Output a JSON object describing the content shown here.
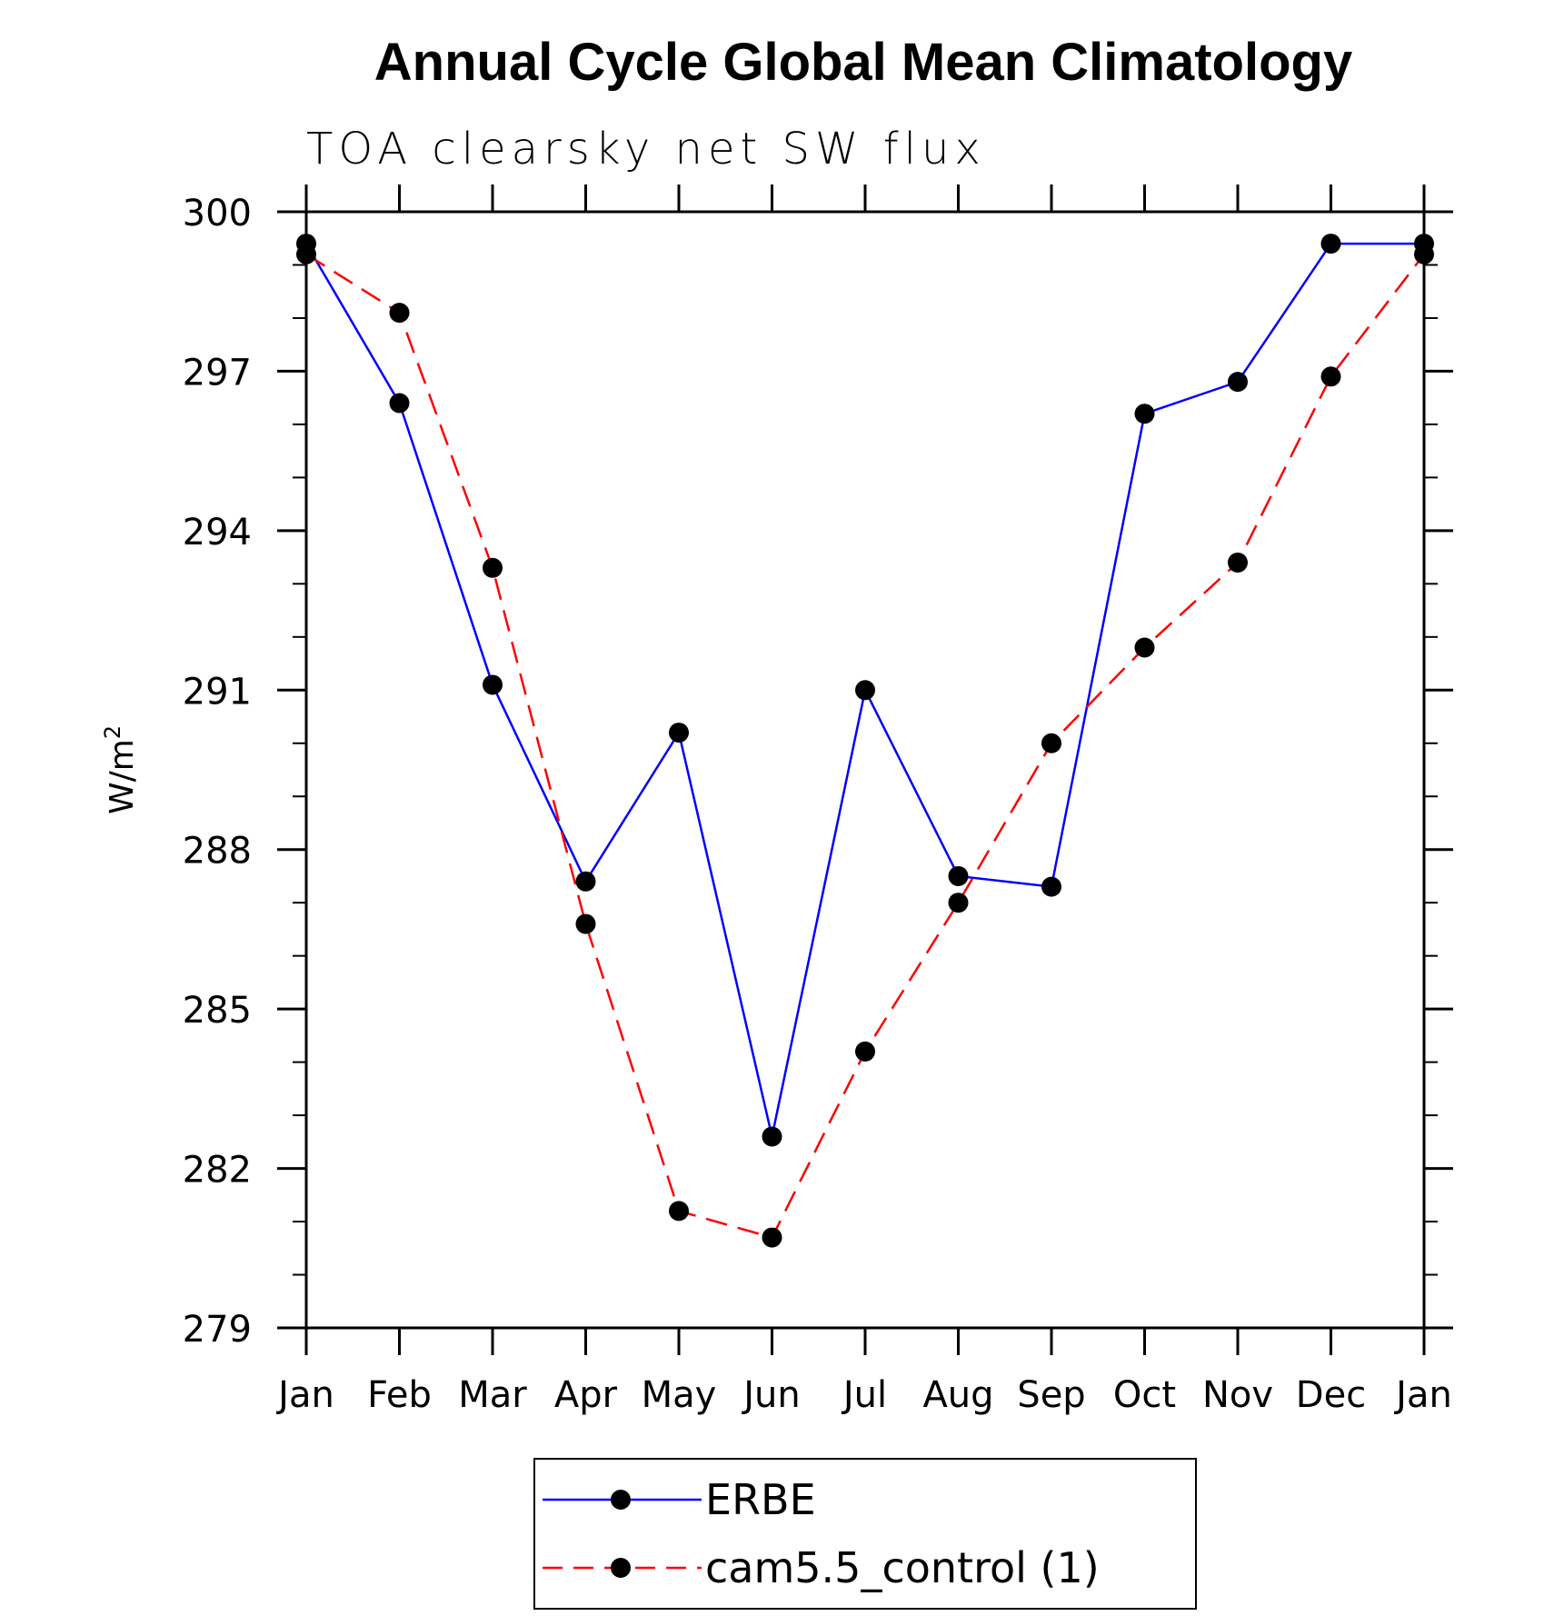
{
  "chart_data": {
    "type": "line",
    "title": "Annual Cycle Global Mean Climatology",
    "subtitle": "TOA clearsky net SW flux",
    "ylabel": "W/m",
    "ylabel_superscript": "2",
    "xlabel": "",
    "categories": [
      "Jan",
      "Feb",
      "Mar",
      "Apr",
      "May",
      "Jun",
      "Jul",
      "Aug",
      "Sep",
      "Oct",
      "Nov",
      "Dec",
      "Jan"
    ],
    "ylim": [
      279,
      300
    ],
    "yticks": [
      "279",
      "282",
      "285",
      "288",
      "291",
      "294",
      "297",
      "300"
    ],
    "series": [
      {
        "name": "ERBE",
        "color": "#0000ff",
        "line_style": "solid",
        "values": [
          299.4,
          296.4,
          291.1,
          287.4,
          290.2,
          282.6,
          291.0,
          287.5,
          287.3,
          296.2,
          296.8,
          299.4,
          299.4
        ]
      },
      {
        "name": "cam5.5_control (1)",
        "color": "#ff0000",
        "line_style": "dashed",
        "values": [
          299.2,
          298.1,
          293.3,
          286.6,
          281.2,
          280.7,
          284.2,
          287.0,
          290.0,
          291.8,
          293.4,
          296.9,
          299.2
        ]
      }
    ],
    "grid": false,
    "legend_position": "bottom-center"
  }
}
